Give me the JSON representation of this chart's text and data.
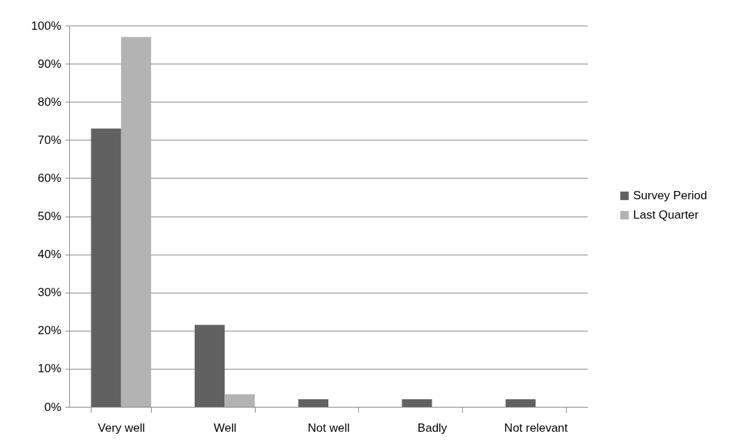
{
  "chart_data": {
    "type": "bar",
    "categories": [
      "Very well",
      "Well",
      "Not well",
      "Badly",
      "Not relevant"
    ],
    "series": [
      {
        "name": "Survey Period",
        "color": "#616161",
        "values": [
          73,
          21.5,
          2,
          2,
          2
        ]
      },
      {
        "name": "Last Quarter",
        "color": "#b3b3b3",
        "values": [
          97,
          3.3,
          null,
          null,
          null
        ]
      }
    ],
    "ylim": [
      0,
      100
    ],
    "yticks": [
      {
        "value": 0,
        "label": "0%"
      },
      {
        "value": 10,
        "label": "10%"
      },
      {
        "value": 20,
        "label": "20%"
      },
      {
        "value": 30,
        "label": "30%"
      },
      {
        "value": 40,
        "label": "40%"
      },
      {
        "value": 50,
        "label": "50%"
      },
      {
        "value": 60,
        "label": "60%"
      },
      {
        "value": 70,
        "label": "70%"
      },
      {
        "value": 80,
        "label": "80%"
      },
      {
        "value": 90,
        "label": "90%"
      },
      {
        "value": 100,
        "label": "100%"
      }
    ],
    "grid": "y",
    "legend": "right"
  }
}
